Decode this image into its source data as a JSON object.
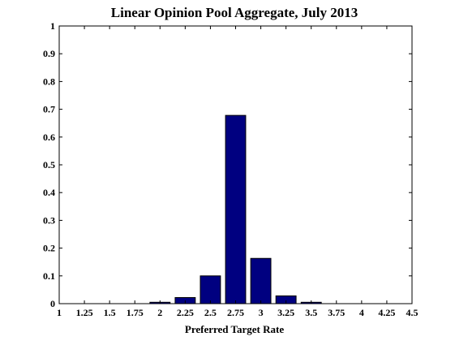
{
  "chart_data": {
    "type": "bar",
    "title": "Linear Opinion Pool Aggregate, July 2013",
    "xlabel": "Preferred Target Rate",
    "ylabel": "",
    "x": [
      1,
      1.25,
      1.5,
      1.75,
      2,
      2.25,
      2.5,
      2.75,
      3,
      3.25,
      3.5,
      3.75,
      4,
      4.25,
      4.5
    ],
    "values": [
      0,
      0,
      0,
      0,
      0.005,
      0.022,
      0.1,
      0.678,
      0.163,
      0.028,
      0.005,
      0,
      0,
      0,
      0
    ],
    "xlim": [
      1,
      4.5
    ],
    "ylim": [
      0,
      1
    ],
    "xticks": [
      "1",
      "1.25",
      "1.5",
      "1.75",
      "2",
      "2.25",
      "2.5",
      "2.75",
      "3",
      "3.25",
      "3.5",
      "3.75",
      "4",
      "4.25",
      "4.5"
    ],
    "yticks": [
      "0",
      "0.1",
      "0.2",
      "0.3",
      "0.4",
      "0.5",
      "0.6",
      "0.7",
      "0.8",
      "0.9",
      "1"
    ],
    "grid": false,
    "legend": "none",
    "bar_color": "#000080",
    "bar_edge_color": "#000000"
  }
}
